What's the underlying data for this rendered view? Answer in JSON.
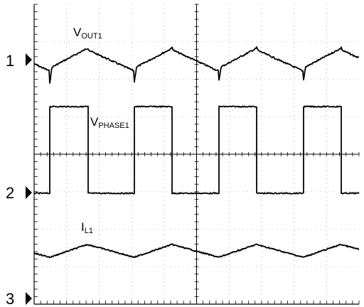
{
  "chart_data": {
    "type": "line",
    "title": "",
    "xlabel": "",
    "ylabel": "",
    "grid": true,
    "divisions": {
      "x": 10,
      "y": 8
    },
    "colors": {
      "trace": "#000000",
      "grid": "#000000",
      "background": "#ffffff"
    },
    "channels": [
      {
        "name": "1",
        "marker_icon": "triangle-right-icon"
      },
      {
        "name": "2",
        "marker_icon": "triangle-right-icon"
      },
      {
        "name": "3",
        "marker_icon": "triangle-right-icon"
      }
    ],
    "series": [
      {
        "name": "V",
        "subscript": "OUT1",
        "channel": "1",
        "waveform": "sawtooth-ripple"
      },
      {
        "name": "V",
        "subscript": "PHASE1",
        "channel": "2",
        "waveform": "square"
      },
      {
        "name": "I",
        "subscript": "L1",
        "channel": "3",
        "waveform": "triangle"
      }
    ]
  }
}
